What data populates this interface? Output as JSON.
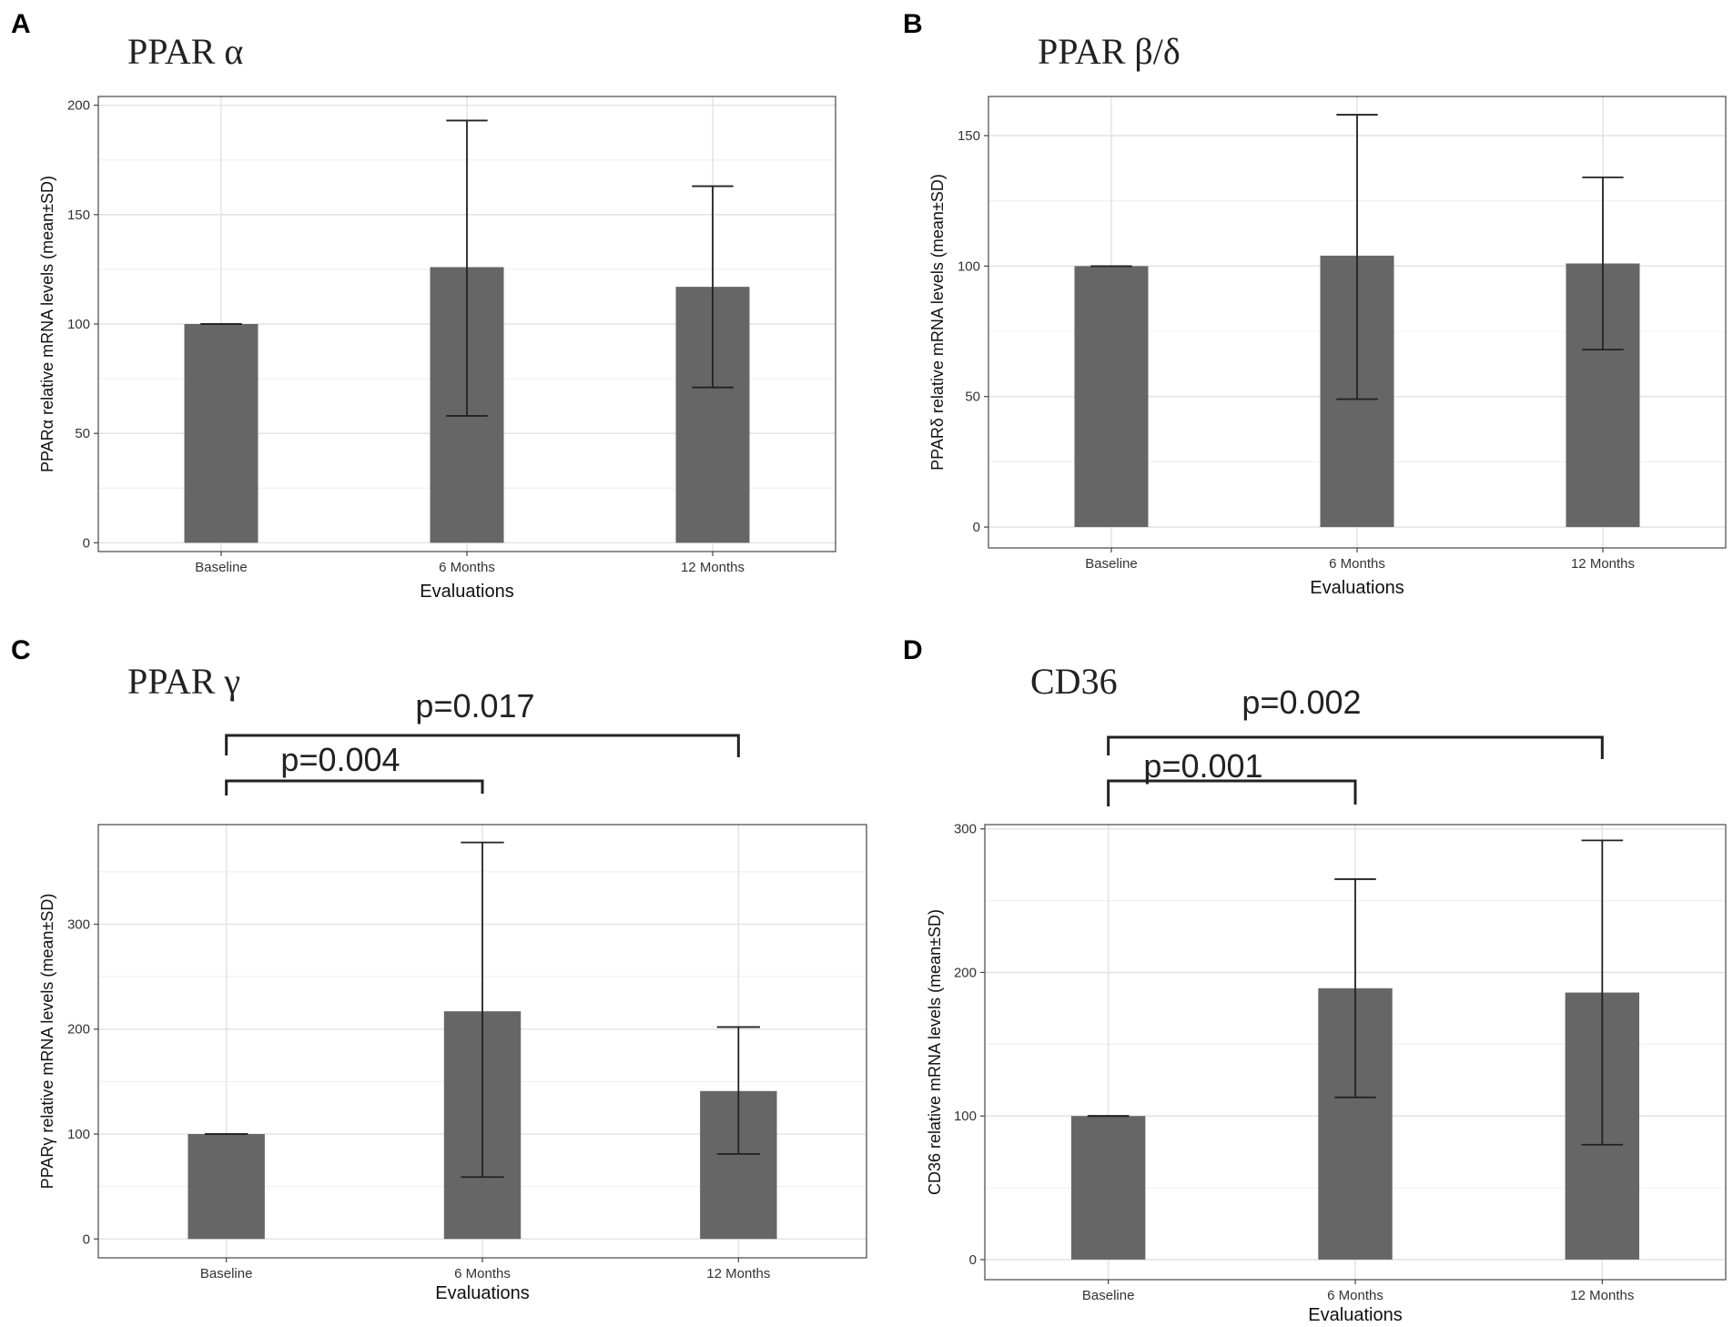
{
  "chart_data": [
    {
      "type": "bar",
      "panel": "A",
      "title": "PPAR α",
      "xlabel": "Evaluations",
      "ylabel": "PPARα relative mRNA levels (mean±SD)",
      "categories": [
        "Baseline",
        "6 Months",
        "12 Months"
      ],
      "values": [
        100,
        126,
        117
      ],
      "sd_lower": [
        100,
        58,
        71
      ],
      "sd_upper": [
        100,
        193,
        163
      ],
      "yticks": [
        0,
        50,
        100,
        150,
        200
      ],
      "ylim": [
        -4,
        204
      ],
      "significance": []
    },
    {
      "type": "bar",
      "panel": "B",
      "title": "PPAR β/δ",
      "xlabel": "Evaluations",
      "ylabel": "PPARδ relative mRNA levels (mean±SD)",
      "categories": [
        "Baseline",
        "6 Months",
        "12 Months"
      ],
      "values": [
        100,
        104,
        101
      ],
      "sd_lower": [
        100,
        49,
        68
      ],
      "sd_upper": [
        100,
        158,
        134
      ],
      "yticks": [
        0,
        50,
        100,
        150
      ],
      "ylim": [
        -8,
        165
      ],
      "significance": []
    },
    {
      "type": "bar",
      "panel": "C",
      "title": "PPAR γ",
      "xlabel": "Evaluations",
      "ylabel": "PPARγ relative mRNA levels (mean±SD)",
      "categories": [
        "Baseline",
        "6 Months",
        "12 Months"
      ],
      "values": [
        100,
        217,
        141
      ],
      "sd_lower": [
        100,
        59,
        81
      ],
      "sd_upper": [
        100,
        378,
        202
      ],
      "yticks": [
        0,
        100,
        200,
        300
      ],
      "ylim": [
        -18,
        395
      ],
      "significance": [
        {
          "from": "Baseline",
          "to": "12 Months",
          "label": "p=0.017"
        },
        {
          "from": "Baseline",
          "to": "6 Months",
          "label": "p=0.004"
        }
      ]
    },
    {
      "type": "bar",
      "panel": "D",
      "title": "CD36",
      "xlabel": "Evaluations",
      "ylabel": "CD36 relative mRNA levels (mean±SD)",
      "categories": [
        "Baseline",
        "6 Months",
        "12 Months"
      ],
      "values": [
        100,
        189,
        186
      ],
      "sd_lower": [
        100,
        113,
        80
      ],
      "sd_upper": [
        100,
        265,
        292
      ],
      "yticks": [
        0,
        100,
        200,
        300
      ],
      "ylim": [
        -14,
        303
      ],
      "significance": [
        {
          "from": "Baseline",
          "to": "12 Months",
          "label": "p=0.002"
        },
        {
          "from": "Baseline",
          "to": "6 Months",
          "label": "p=0.001"
        }
      ]
    }
  ]
}
